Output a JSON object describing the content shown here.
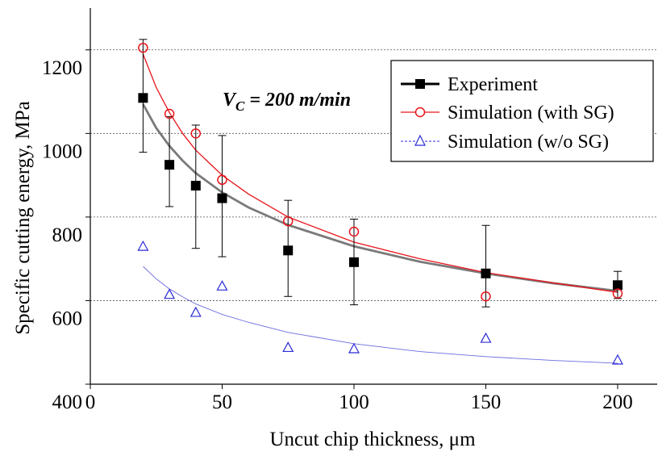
{
  "chart_data": {
    "type": "scatter",
    "xlabel": "Uncut chip thickness, μm",
    "ylabel": "Specific cutting energy, MPa",
    "xlim": [
      0,
      215
    ],
    "ylim": [
      400,
      1300
    ],
    "x_ticks": [
      0,
      50,
      100,
      150,
      200
    ],
    "y_ticks": [
      400,
      600,
      800,
      1000,
      1200
    ],
    "grid": "horizontal dashed lines at 600, 800, 1000, 1200",
    "legend_placement": "top-right",
    "annotation": {
      "main": "V",
      "sub": "C",
      "rest": " = 200 m/min"
    },
    "series": [
      {
        "name": "Experiment",
        "marker": "filled-square",
        "color": "#000000",
        "x": [
          20,
          30,
          40,
          50,
          75,
          100,
          150,
          200
        ],
        "y": [
          1085,
          925,
          875,
          845,
          720,
          692,
          665,
          637
        ],
        "error_low": [
          955,
          825,
          725,
          705,
          610,
          590,
          585,
          605
        ],
        "error_high": [
          1225,
          1040,
          1020,
          995,
          840,
          795,
          780,
          670
        ],
        "fit": [
          [
            20,
            1070
          ],
          [
            25,
            1013
          ],
          [
            30,
            970
          ],
          [
            35,
            935
          ],
          [
            40,
            905
          ],
          [
            50,
            859
          ],
          [
            60,
            823
          ],
          [
            75,
            781
          ],
          [
            100,
            730
          ],
          [
            125,
            693
          ],
          [
            150,
            665
          ],
          [
            175,
            642
          ],
          [
            200,
            623
          ]
        ]
      },
      {
        "name": "Simulation (with SG)",
        "marker": "open-circle",
        "color": "#e8141b",
        "x": [
          20,
          30,
          40,
          50,
          75,
          100,
          150,
          200
        ],
        "y": [
          1205,
          1047,
          1000,
          889,
          790,
          765,
          610,
          617
        ],
        "fit": [
          [
            20,
            1190
          ],
          [
            25,
            1110
          ],
          [
            30,
            1050
          ],
          [
            35,
            1000
          ],
          [
            40,
            960
          ],
          [
            50,
            900
          ],
          [
            60,
            855
          ],
          [
            75,
            800
          ],
          [
            100,
            740
          ],
          [
            125,
            700
          ],
          [
            150,
            667
          ],
          [
            175,
            643
          ],
          [
            200,
            620
          ]
        ]
      },
      {
        "name": "Simulation (w/o SG)",
        "marker": "open-triangle",
        "color": "#2b2bd6",
        "x": [
          20,
          30,
          40,
          50,
          75,
          100,
          150,
          200
        ],
        "y": [
          730,
          615,
          572,
          635,
          488,
          485,
          510,
          458
        ],
        "fit": [
          [
            20,
            682
          ],
          [
            25,
            652
          ],
          [
            30,
            628
          ],
          [
            35,
            609
          ],
          [
            40,
            592
          ],
          [
            50,
            567
          ],
          [
            60,
            548
          ],
          [
            75,
            524
          ],
          [
            100,
            497
          ],
          [
            125,
            478
          ],
          [
            150,
            466
          ],
          [
            175,
            457
          ],
          [
            200,
            450
          ]
        ]
      }
    ]
  }
}
